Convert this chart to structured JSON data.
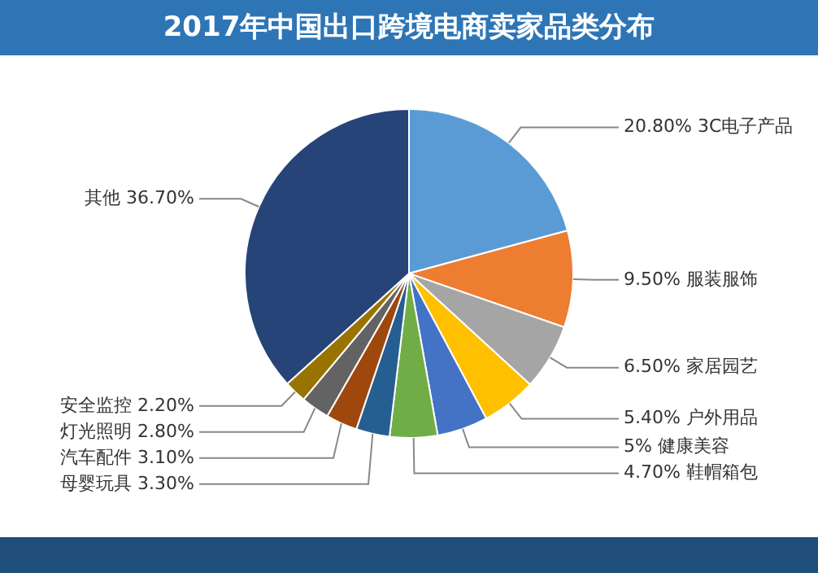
{
  "chart_data": {
    "type": "pie",
    "title": "2017年中国出口跨境电商卖家品类分布",
    "categories": [
      "3C电子产品",
      "服装服饰",
      "家居园艺",
      "户外用品",
      "健康美容",
      "鞋帽箱包",
      "母婴玩具",
      "汽车配件",
      "灯光照明",
      "安全监控",
      "其他"
    ],
    "values": [
      20.8,
      9.5,
      6.5,
      5.4,
      5,
      4.7,
      3.3,
      3.1,
      2.8,
      2.2,
      36.7
    ],
    "value_labels": [
      "20.80%",
      "9.50%",
      "6.50%",
      "5.40%",
      "5%",
      "4.70%",
      "3.30%",
      "3.10%",
      "2.80%",
      "2.20%",
      "36.70%"
    ],
    "colors": [
      "#5b9bd5",
      "#ed7d31",
      "#a5a5a5",
      "#ffc000",
      "#4472c4",
      "#70ad47",
      "#255e91",
      "#9e480e",
      "#636363",
      "#997300",
      "#264478"
    ],
    "legend": false
  }
}
